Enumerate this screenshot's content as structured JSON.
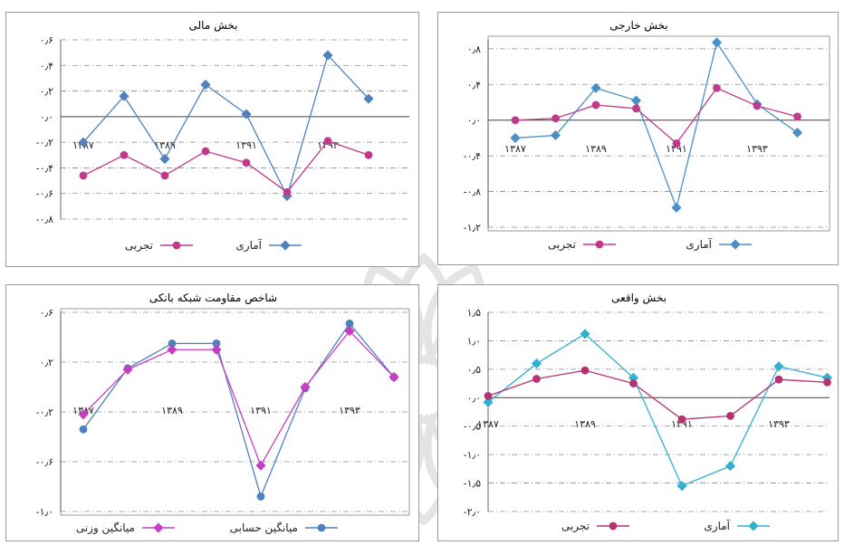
{
  "chart_data": [
    {
      "id": "financial",
      "type": "line",
      "title": "بخش مالی",
      "x_tick_labels": [
        "۱۳۸۷",
        "۱۳۸۹",
        "۱۳۹۱",
        "۱۳۹۳"
      ],
      "y_tick_labels": [
        "۰٫۶",
        "۰٫۴",
        "۰٫۲",
        "۰٫۰",
        "-۰٫۲",
        "-۰٫۴",
        "-۰٫۶",
        "-۰٫۸"
      ],
      "ylim": [
        -0.8,
        0.6
      ],
      "y_ticks": [
        0.6,
        0.4,
        0.2,
        0.0,
        -0.2,
        -0.4,
        -0.6,
        -0.8
      ],
      "grid": true,
      "legend_position": "bottom",
      "x": [
        1387,
        1388,
        1389,
        1390,
        1391,
        1392,
        1393,
        1394
      ],
      "series": [
        {
          "name": "آماری",
          "color": "#4f81bd",
          "values": [
            -0.2,
            0.16,
            -0.33,
            0.25,
            0.02,
            -0.62,
            0.48,
            0.14
          ]
        },
        {
          "name": "تجربی",
          "color": "#c0398b",
          "values": [
            -0.46,
            -0.3,
            -0.46,
            -0.27,
            -0.36,
            -0.59,
            -0.19,
            -0.3
          ]
        }
      ]
    },
    {
      "id": "external",
      "type": "line",
      "title": "بخش خارجی",
      "x_tick_labels": [
        "۱۳۸۷",
        "۱۳۸۹",
        "۱۳۹۱",
        "۱۳۹۳"
      ],
      "y_tick_labels": [
        "۰٫۸",
        "۰٫۴",
        "۰٫۰",
        "-۰٫۴",
        "-۰٫۸",
        "-۱٫۲"
      ],
      "ylim": [
        -1.2,
        0.9
      ],
      "y_ticks": [
        0.8,
        0.4,
        0.0,
        -0.4,
        -0.8,
        -1.2
      ],
      "grid": true,
      "legend_position": "bottom",
      "x": [
        1387,
        1388,
        1389,
        1390,
        1391,
        1392,
        1393,
        1394
      ],
      "series": [
        {
          "name": "آماری",
          "color": "#4a90c8",
          "values": [
            -0.2,
            -0.17,
            0.36,
            0.22,
            -0.98,
            0.87,
            0.18,
            -0.14
          ]
        },
        {
          "name": "تجربی",
          "color": "#c0398b",
          "values": [
            0.0,
            0.02,
            0.17,
            0.13,
            -0.26,
            0.36,
            0.16,
            0.04
          ]
        }
      ]
    },
    {
      "id": "resilience",
      "type": "line",
      "title": "شاخص مقاومت شبکه بانکی",
      "x_tick_labels": [
        "۱۳۸۷",
        "۱۳۸۹",
        "۱۳۹۱",
        "۱۳۹۳"
      ],
      "y_tick_labels": [
        "۰٫۶",
        "۰٫۲",
        "-۰٫۲",
        "-۰٫۶",
        "-۱٫۰"
      ],
      "ylim": [
        -1.0,
        0.6
      ],
      "y_ticks": [
        0.6,
        0.2,
        -0.2,
        -0.6,
        -1.0
      ],
      "grid": true,
      "legend_position": "bottom",
      "x": [
        1387,
        1388,
        1389,
        1390,
        1391,
        1392,
        1393,
        1394
      ],
      "series": [
        {
          "name": "میانگین حسابی",
          "color": "#4f81bd",
          "values": [
            -0.34,
            0.15,
            0.35,
            0.35,
            -0.88,
            -0.01,
            0.51,
            0.08
          ]
        },
        {
          "name": "میانگین وزنی",
          "color": "#c73fc0",
          "values": [
            -0.22,
            0.14,
            0.3,
            0.3,
            -0.63,
            0.0,
            0.45,
            0.08
          ]
        }
      ]
    },
    {
      "id": "real",
      "type": "line",
      "title": "بخش واقعی",
      "x_tick_labels": [
        "۱۳۸۷",
        "۱۳۸۹",
        "۱۳۹۱",
        "۱۳۹۳"
      ],
      "y_tick_labels": [
        "۱٫۵",
        "۱٫۰",
        "۰٫۵",
        "۰٫۰",
        "-۰٫۵",
        "-۱٫۰",
        "-۱٫۵",
        "-۲٫۰"
      ],
      "ylim": [
        -2.0,
        1.5
      ],
      "y_ticks": [
        1.5,
        1.0,
        0.5,
        0.0,
        -0.5,
        -1.0,
        -1.5,
        -2.0
      ],
      "grid": true,
      "legend_position": "bottom",
      "x": [
        1387,
        1388,
        1389,
        1390,
        1391,
        1392,
        1393,
        1394
      ],
      "series": [
        {
          "name": "آماری",
          "color": "#31b0d0",
          "values": [
            -0.08,
            0.6,
            1.12,
            0.35,
            -1.55,
            -1.2,
            0.55,
            0.35
          ]
        },
        {
          "name": "تجربی",
          "color": "#b63272",
          "values": [
            0.03,
            0.33,
            0.48,
            0.25,
            -0.38,
            -0.32,
            0.32,
            0.27
          ]
        }
      ]
    }
  ]
}
